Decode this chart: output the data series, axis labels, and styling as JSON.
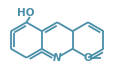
{
  "bg_color": "#ffffff",
  "bond_color": "#4a8fa8",
  "text_color": "#4a8fa8",
  "line_width": 1.3,
  "oh_label": "HO",
  "n_label": "N",
  "o_label": "O",
  "methyl_label": "",
  "figsize": [
    1.22,
    0.78
  ],
  "dpi": 100,
  "xlim": [
    0,
    122
  ],
  "ylim": [
    0,
    78
  ]
}
